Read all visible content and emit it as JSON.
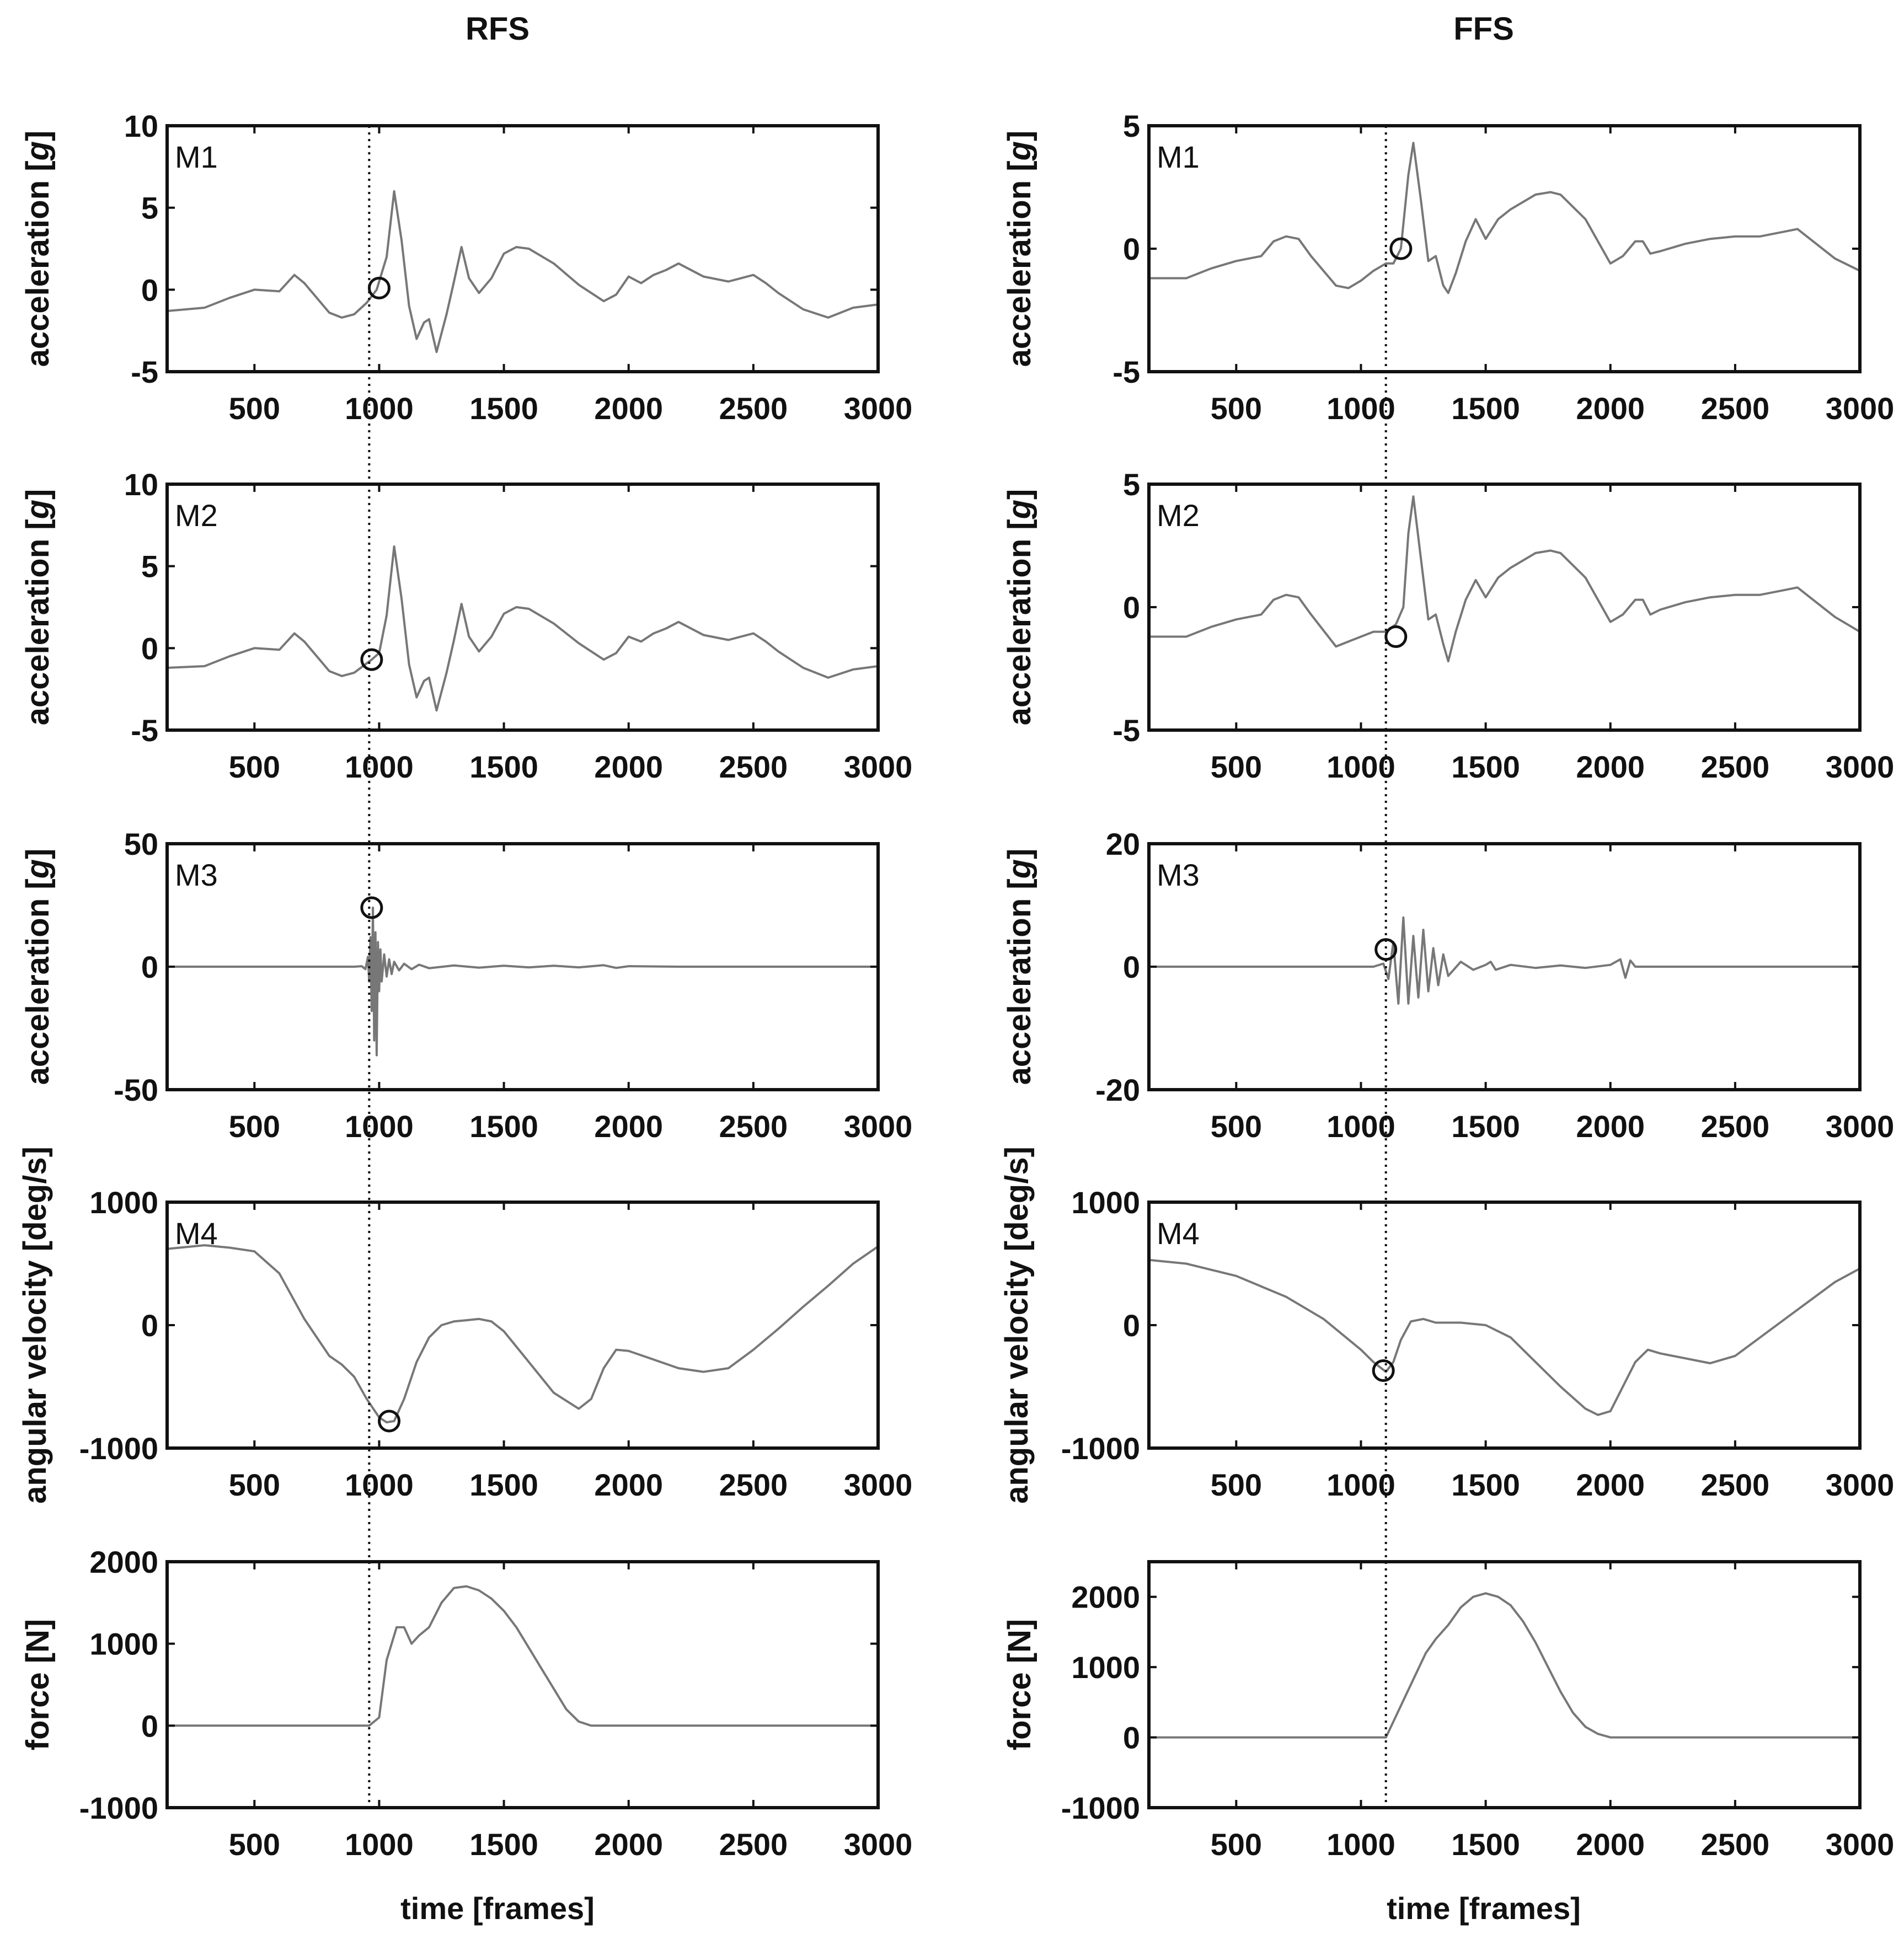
{
  "figure": {
    "columns": [
      {
        "title": "RFS",
        "xlabel": "time [frames]",
        "event_frame": 960
      },
      {
        "title": "FFS",
        "xlabel": "time [frames]",
        "event_frame": 1100
      }
    ]
  },
  "colors": {
    "line": "#777777",
    "axis": "#111111",
    "text": "#111111",
    "marker": "#111111"
  },
  "chart_data": [
    {
      "id": "rfs-m1",
      "type": "line",
      "column": "RFS",
      "label": "M1",
      "ylabel": "acceleration [g]",
      "ylabel_unit": "g",
      "xlim": [
        150,
        3000
      ],
      "ylim": [
        -5,
        10
      ],
      "yticks": [
        10,
        5,
        0,
        -5
      ],
      "xticks": [
        500,
        1000,
        1500,
        2000,
        2500,
        3000
      ],
      "x": [
        150,
        300,
        400,
        500,
        600,
        660,
        700,
        800,
        850,
        900,
        950,
        990,
        1030,
        1060,
        1090,
        1120,
        1150,
        1180,
        1200,
        1230,
        1270,
        1300,
        1330,
        1360,
        1400,
        1450,
        1500,
        1550,
        1600,
        1700,
        1800,
        1900,
        1950,
        2000,
        2050,
        2100,
        2150,
        2200,
        2300,
        2400,
        2500,
        2550,
        2600,
        2700,
        2800,
        2900,
        3000
      ],
      "y": [
        -1.3,
        -1.1,
        -0.5,
        0,
        -0.1,
        0.9,
        0.4,
        -1.4,
        -1.7,
        -1.5,
        -0.8,
        0,
        2,
        6,
        3,
        -1,
        -3,
        -2,
        -1.8,
        -3.8,
        -1.5,
        0.5,
        2.6,
        0.7,
        -0.2,
        0.7,
        2.2,
        2.6,
        2.5,
        1.6,
        0.3,
        -0.7,
        -0.3,
        0.8,
        0.4,
        0.9,
        1.2,
        1.6,
        0.8,
        0.5,
        0.9,
        0.4,
        -0.2,
        -1.2,
        -1.7,
        -1.1,
        -0.9
      ],
      "marker": {
        "x": 1000,
        "y": 0.1
      }
    },
    {
      "id": "rfs-m2",
      "type": "line",
      "column": "RFS",
      "label": "M2",
      "ylabel": "acceleration [g]",
      "ylabel_unit": "g",
      "xlim": [
        150,
        3000
      ],
      "ylim": [
        -5,
        10
      ],
      "yticks": [
        10,
        5,
        0,
        -5
      ],
      "xticks": [
        500,
        1000,
        1500,
        2000,
        2500,
        3000
      ],
      "x": [
        150,
        300,
        400,
        500,
        600,
        660,
        700,
        800,
        850,
        900,
        970,
        1000,
        1030,
        1060,
        1090,
        1120,
        1150,
        1180,
        1200,
        1230,
        1270,
        1300,
        1330,
        1360,
        1400,
        1450,
        1500,
        1550,
        1600,
        1700,
        1800,
        1900,
        1950,
        2000,
        2050,
        2100,
        2150,
        2200,
        2300,
        2400,
        2500,
        2550,
        2600,
        2700,
        2800,
        2900,
        3000
      ],
      "y": [
        -1.2,
        -1.1,
        -0.5,
        0,
        -0.1,
        0.9,
        0.4,
        -1.4,
        -1.7,
        -1.5,
        -0.7,
        -0.3,
        2,
        6.2,
        3,
        -1,
        -3,
        -2,
        -1.8,
        -3.8,
        -1.5,
        0.5,
        2.7,
        0.7,
        -0.2,
        0.7,
        2.1,
        2.5,
        2.4,
        1.5,
        0.3,
        -0.7,
        -0.3,
        0.7,
        0.4,
        0.9,
        1.2,
        1.6,
        0.8,
        0.5,
        0.9,
        0.4,
        -0.2,
        -1.2,
        -1.8,
        -1.3,
        -1.1
      ],
      "marker": {
        "x": 970,
        "y": -0.7
      }
    },
    {
      "id": "rfs-m3",
      "type": "line",
      "column": "RFS",
      "label": "M3",
      "ylabel": "acceleration [g]",
      "ylabel_unit": "g",
      "xlim": [
        150,
        3000
      ],
      "ylim": [
        -50,
        50
      ],
      "yticks": [
        50,
        0,
        -50
      ],
      "xticks": [
        500,
        1000,
        1500,
        2000,
        2500,
        3000
      ],
      "x": [
        150,
        900,
        930,
        945,
        955,
        960,
        965,
        970,
        975,
        980,
        985,
        990,
        995,
        1000,
        1005,
        1010,
        1020,
        1030,
        1040,
        1050,
        1060,
        1080,
        1100,
        1130,
        1160,
        1200,
        1300,
        1400,
        1500,
        1600,
        1700,
        1800,
        1900,
        1950,
        2000,
        2200,
        3000
      ],
      "y": [
        0,
        0,
        0.2,
        -1,
        4,
        -6,
        12,
        -18,
        24,
        -30,
        14,
        -36,
        10,
        -10,
        7,
        -6,
        5,
        -4,
        3,
        -3,
        2,
        -1.5,
        1.2,
        -1,
        0.8,
        -0.6,
        0.5,
        -0.4,
        0.4,
        -0.3,
        0.4,
        -0.3,
        0.6,
        -0.5,
        0.2,
        0,
        0
      ],
      "marker": {
        "x": 970,
        "y": 24
      }
    },
    {
      "id": "rfs-m4",
      "type": "line",
      "column": "RFS",
      "label": "M4",
      "ylabel": "angular velocity [deg/s]",
      "ylabel_unit": "",
      "xlim": [
        150,
        3000
      ],
      "ylim": [
        -1000,
        1000
      ],
      "yticks": [
        1000,
        0,
        -1000
      ],
      "xticks": [
        500,
        1000,
        1500,
        2000,
        2500,
        3000
      ],
      "x": [
        150,
        300,
        400,
        500,
        600,
        700,
        800,
        850,
        900,
        950,
        1000,
        1030,
        1060,
        1100,
        1150,
        1200,
        1250,
        1300,
        1350,
        1400,
        1450,
        1500,
        1600,
        1700,
        1800,
        1850,
        1900,
        1950,
        2000,
        2100,
        2200,
        2300,
        2400,
        2500,
        2600,
        2700,
        2800,
        2900,
        3000
      ],
      "y": [
        620,
        650,
        630,
        600,
        420,
        50,
        -250,
        -320,
        -420,
        -600,
        -750,
        -790,
        -780,
        -600,
        -300,
        -100,
        0,
        30,
        40,
        50,
        30,
        -50,
        -300,
        -550,
        -680,
        -600,
        -350,
        -200,
        -210,
        -280,
        -350,
        -380,
        -350,
        -200,
        -30,
        150,
        320,
        500,
        640
      ],
      "marker": {
        "x": 1040,
        "y": -780
      }
    },
    {
      "id": "rfs-force",
      "type": "line",
      "column": "RFS",
      "label": "",
      "ylabel": "force [N]",
      "ylabel_unit": "",
      "xlim": [
        150,
        3000
      ],
      "ylim": [
        -1000,
        2000
      ],
      "yticks": [
        2000,
        1000,
        0,
        -1000
      ],
      "xticks": [
        500,
        1000,
        1500,
        2000,
        2500,
        3000
      ],
      "x": [
        150,
        500,
        960,
        1000,
        1030,
        1070,
        1100,
        1130,
        1160,
        1200,
        1250,
        1300,
        1350,
        1400,
        1450,
        1500,
        1550,
        1600,
        1650,
        1700,
        1750,
        1800,
        1850,
        1900,
        2000,
        2500,
        3000
      ],
      "y": [
        0,
        0,
        0,
        100,
        800,
        1200,
        1200,
        1000,
        1100,
        1200,
        1500,
        1680,
        1700,
        1650,
        1550,
        1400,
        1200,
        950,
        700,
        450,
        200,
        50,
        0,
        0,
        0,
        0,
        0
      ],
      "marker": null
    },
    {
      "id": "ffs-m1",
      "type": "line",
      "column": "FFS",
      "label": "M1",
      "ylabel": "acceleration [g]",
      "ylabel_unit": "g",
      "xlim": [
        150,
        3000
      ],
      "ylim": [
        -5,
        5
      ],
      "yticks": [
        5,
        0,
        -5
      ],
      "xticks": [
        500,
        1000,
        1500,
        2000,
        2500,
        3000
      ],
      "x": [
        150,
        300,
        400,
        500,
        600,
        650,
        700,
        750,
        800,
        900,
        950,
        1000,
        1050,
        1100,
        1130,
        1160,
        1190,
        1210,
        1240,
        1270,
        1300,
        1330,
        1350,
        1380,
        1420,
        1460,
        1500,
        1550,
        1600,
        1700,
        1760,
        1800,
        1900,
        1950,
        2000,
        2050,
        2100,
        2130,
        2160,
        2200,
        2300,
        2400,
        2500,
        2600,
        2700,
        2750,
        2800,
        2900,
        3000
      ],
      "y": [
        -1.2,
        -1.2,
        -0.8,
        -0.5,
        -0.3,
        0.3,
        0.5,
        0.4,
        -0.3,
        -1.5,
        -1.6,
        -1.3,
        -0.9,
        -0.6,
        -0.6,
        0,
        3,
        4.3,
        2,
        -0.5,
        -0.3,
        -1.5,
        -1.8,
        -1,
        0.3,
        1.2,
        0.4,
        1.2,
        1.6,
        2.2,
        2.3,
        2.2,
        1.2,
        0.3,
        -0.6,
        -0.3,
        0.3,
        0.3,
        -0.2,
        -0.1,
        0.2,
        0.4,
        0.5,
        0.5,
        0.7,
        0.8,
        0.4,
        -0.4,
        -0.9
      ],
      "marker": {
        "x": 1160,
        "y": 0
      }
    },
    {
      "id": "ffs-m2",
      "type": "line",
      "column": "FFS",
      "label": "M2",
      "ylabel": "acceleration [g]",
      "ylabel_unit": "g",
      "xlim": [
        150,
        3000
      ],
      "ylim": [
        -5,
        5
      ],
      "yticks": [
        5,
        0,
        -5
      ],
      "xticks": [
        500,
        1000,
        1500,
        2000,
        2500,
        3000
      ],
      "x": [
        150,
        300,
        400,
        500,
        600,
        650,
        700,
        750,
        800,
        900,
        950,
        1000,
        1050,
        1100,
        1140,
        1170,
        1190,
        1210,
        1240,
        1270,
        1300,
        1330,
        1350,
        1380,
        1420,
        1460,
        1500,
        1550,
        1600,
        1700,
        1760,
        1800,
        1900,
        1950,
        2000,
        2050,
        2100,
        2130,
        2160,
        2200,
        2300,
        2400,
        2500,
        2600,
        2700,
        2750,
        2800,
        2900,
        3000
      ],
      "y": [
        -1.2,
        -1.2,
        -0.8,
        -0.5,
        -0.3,
        0.3,
        0.5,
        0.4,
        -0.3,
        -1.6,
        -1.4,
        -1.2,
        -1,
        -1,
        -0.7,
        0,
        3,
        4.5,
        2,
        -0.5,
        -0.3,
        -1.5,
        -2.2,
        -1,
        0.3,
        1.1,
        0.4,
        1.2,
        1.6,
        2.2,
        2.3,
        2.2,
        1.2,
        0.3,
        -0.6,
        -0.3,
        0.3,
        0.3,
        -0.3,
        -0.1,
        0.2,
        0.4,
        0.5,
        0.5,
        0.7,
        0.8,
        0.4,
        -0.4,
        -1
      ],
      "marker": {
        "x": 1140,
        "y": -1.2
      }
    },
    {
      "id": "ffs-m3",
      "type": "line",
      "column": "FFS",
      "label": "M3",
      "ylabel": "acceleration [g]",
      "ylabel_unit": "g",
      "xlim": [
        150,
        3000
      ],
      "ylim": [
        -20,
        20
      ],
      "yticks": [
        20,
        0,
        -20
      ],
      "xticks": [
        500,
        1000,
        1500,
        2000,
        2500,
        3000
      ],
      "x": [
        150,
        1050,
        1090,
        1110,
        1130,
        1150,
        1170,
        1190,
        1210,
        1230,
        1250,
        1270,
        1290,
        1310,
        1330,
        1350,
        1400,
        1450,
        1500,
        1520,
        1540,
        1600,
        1700,
        1800,
        1900,
        2000,
        2040,
        2060,
        2080,
        2100,
        2200,
        3000
      ],
      "y": [
        0,
        0,
        0.5,
        -2,
        4,
        -6,
        8,
        -6,
        5,
        -5,
        6,
        -4,
        3,
        -3,
        2,
        -1.5,
        0.8,
        -0.5,
        0.3,
        0.8,
        -0.5,
        0.3,
        -0.2,
        0.2,
        -0.2,
        0.3,
        1.2,
        -1.8,
        1,
        0,
        0,
        0
      ],
      "marker": {
        "x": 1100,
        "y": 2.8
      }
    },
    {
      "id": "ffs-m4",
      "type": "line",
      "column": "FFS",
      "label": "M4",
      "ylabel": "angular velocity [deg/s]",
      "ylabel_unit": "",
      "xlim": [
        150,
        3000
      ],
      "ylim": [
        -1000,
        1000
      ],
      "yticks": [
        1000,
        0,
        -1000
      ],
      "xticks": [
        500,
        1000,
        1500,
        2000,
        2500,
        3000
      ],
      "x": [
        150,
        300,
        500,
        700,
        850,
        1000,
        1050,
        1100,
        1130,
        1160,
        1200,
        1250,
        1300,
        1400,
        1500,
        1600,
        1700,
        1800,
        1900,
        1950,
        2000,
        2050,
        2100,
        2150,
        2200,
        2300,
        2400,
        2500,
        2600,
        2700,
        2800,
        2900,
        3000
      ],
      "y": [
        530,
        500,
        400,
        230,
        50,
        -200,
        -300,
        -380,
        -300,
        -120,
        30,
        50,
        20,
        20,
        0,
        -100,
        -300,
        -500,
        -680,
        -730,
        -700,
        -500,
        -300,
        -200,
        -230,
        -270,
        -310,
        -250,
        -100,
        50,
        200,
        350,
        460
      ],
      "marker": {
        "x": 1090,
        "y": -370
      }
    },
    {
      "id": "ffs-force",
      "type": "line",
      "column": "FFS",
      "label": "",
      "ylabel": "force [N]",
      "ylabel_unit": "",
      "xlim": [
        150,
        3000
      ],
      "ylim": [
        -1000,
        2500
      ],
      "yticks": [
        2000,
        1000,
        0,
        -1000
      ],
      "xticks": [
        500,
        1000,
        1500,
        2000,
        2500,
        3000
      ],
      "x": [
        150,
        500,
        1100,
        1140,
        1180,
        1220,
        1260,
        1300,
        1350,
        1400,
        1450,
        1500,
        1550,
        1600,
        1650,
        1700,
        1750,
        1800,
        1850,
        1900,
        1950,
        2000,
        2050,
        2500,
        3000
      ],
      "y": [
        0,
        0,
        0,
        300,
        600,
        900,
        1200,
        1400,
        1600,
        1850,
        2000,
        2050,
        2000,
        1880,
        1650,
        1350,
        1000,
        650,
        350,
        150,
        50,
        0,
        0,
        0,
        0
      ],
      "marker": null
    }
  ]
}
